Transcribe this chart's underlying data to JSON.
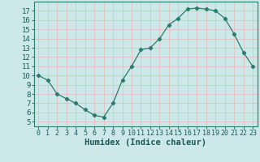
{
  "x": [
    0,
    1,
    2,
    3,
    4,
    5,
    6,
    7,
    8,
    9,
    10,
    11,
    12,
    13,
    14,
    15,
    16,
    17,
    18,
    19,
    20,
    21,
    22,
    23
  ],
  "y": [
    10.0,
    9.5,
    8.0,
    7.5,
    7.0,
    6.3,
    5.7,
    5.5,
    7.0,
    9.5,
    11.0,
    12.8,
    13.0,
    14.0,
    15.5,
    16.2,
    17.2,
    17.3,
    17.2,
    17.0,
    16.2,
    14.5,
    12.5,
    11.0
  ],
  "line_color": "#2d7a6e",
  "marker": "D",
  "marker_size": 2.2,
  "bg_color": "#cce8e8",
  "grid_color": "#e8b8b8",
  "xlabel": "Humidex (Indice chaleur)",
  "xlabel_fontsize": 7.5,
  "tick_fontsize": 6.5,
  "xlim": [
    -0.5,
    23.5
  ],
  "ylim": [
    4.5,
    18.0
  ],
  "yticks": [
    5,
    6,
    7,
    8,
    9,
    10,
    11,
    12,
    13,
    14,
    15,
    16,
    17
  ],
  "xticks": [
    0,
    1,
    2,
    3,
    4,
    5,
    6,
    7,
    8,
    9,
    10,
    11,
    12,
    13,
    14,
    15,
    16,
    17,
    18,
    19,
    20,
    21,
    22,
    23
  ]
}
